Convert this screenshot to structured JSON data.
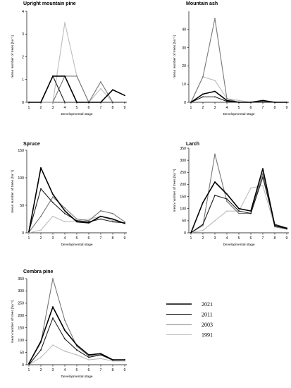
{
  "chart_data": [
    {
      "type": "line",
      "title": "Upright mountain pine",
      "xlabel": "Developmental stage",
      "ylabel": "mean number of trees [ha⁻¹]",
      "x": [
        1,
        2,
        3,
        4,
        5,
        6,
        7,
        8,
        9
      ],
      "ylim": [
        0,
        4
      ],
      "yticks": [
        0,
        1,
        2,
        3,
        4
      ],
      "series": [
        {
          "name": "2021",
          "values": [
            0,
            0,
            1.15,
            1.15,
            0,
            0,
            0,
            0.55,
            0.3
          ]
        },
        {
          "name": "2011",
          "values": [
            0,
            0,
            1.15,
            0,
            0,
            0,
            0,
            0,
            0
          ]
        },
        {
          "name": "2003",
          "values": [
            0,
            0,
            0,
            1.15,
            1.15,
            0,
            0.9,
            0,
            0
          ]
        },
        {
          "name": "1991",
          "values": [
            0,
            0,
            0,
            3.5,
            1.15,
            0,
            0.6,
            0,
            0
          ]
        }
      ]
    },
    {
      "type": "line",
      "title": "Mountain ash",
      "xlabel": "Developmental stage",
      "ylabel": "mean number of trees [ha⁻¹]",
      "x": [
        1,
        2,
        3,
        4,
        5,
        6,
        7,
        8,
        9
      ],
      "ylim": [
        0,
        50
      ],
      "yticks": [
        0,
        10,
        20,
        30,
        40
      ],
      "series": [
        {
          "name": "2021",
          "values": [
            0,
            4.5,
            6,
            1,
            0,
            0,
            1,
            0,
            0
          ]
        },
        {
          "name": "2011",
          "values": [
            0,
            3,
            3,
            0.5,
            0,
            0,
            0,
            0,
            0
          ]
        },
        {
          "name": "2003",
          "values": [
            0,
            14,
            46,
            2,
            0,
            0,
            0.5,
            0,
            0
          ]
        },
        {
          "name": "1991",
          "values": [
            0,
            14,
            12,
            2,
            1,
            0,
            0,
            0,
            0
          ]
        }
      ]
    },
    {
      "type": "line",
      "title": "Spruce",
      "xlabel": "Developmental stage",
      "ylabel": "mean number of trees [ha⁻¹]",
      "x": [
        1,
        2,
        3,
        4,
        5,
        6,
        7,
        8,
        9
      ],
      "ylim": [
        0,
        150
      ],
      "yticks": [
        0,
        50,
        100,
        150
      ],
      "series": [
        {
          "name": "2021",
          "values": [
            2,
            118,
            70,
            40,
            20,
            18,
            30,
            25,
            17
          ]
        },
        {
          "name": "2011",
          "values": [
            2,
            80,
            55,
            35,
            22,
            20,
            25,
            20,
            18
          ]
        },
        {
          "name": "2003",
          "values": [
            1,
            30,
            65,
            45,
            25,
            22,
            40,
            35,
            20
          ]
        },
        {
          "name": "1991",
          "values": [
            0,
            5,
            30,
            20,
            22,
            25,
            30,
            22,
            18
          ]
        }
      ]
    },
    {
      "type": "line",
      "title": "Larch",
      "xlabel": "Developmental stage",
      "ylabel": "mean number of trees [ha⁻¹]",
      "x": [
        1,
        2,
        3,
        4,
        5,
        6,
        7,
        8,
        9
      ],
      "ylim": [
        0,
        350
      ],
      "yticks": [
        0,
        50,
        100,
        150,
        200,
        250,
        300,
        350
      ],
      "series": [
        {
          "name": "2021",
          "values": [
            0,
            125,
            210,
            160,
            100,
            90,
            265,
            30,
            18
          ]
        },
        {
          "name": "2011",
          "values": [
            0,
            35,
            155,
            140,
            90,
            80,
            230,
            35,
            20
          ]
        },
        {
          "name": "2003",
          "values": [
            0,
            30,
            325,
            130,
            80,
            80,
            245,
            25,
            15
          ]
        },
        {
          "name": "1991",
          "values": [
            0,
            10,
            50,
            90,
            90,
            185,
            195,
            25,
            15
          ]
        }
      ]
    },
    {
      "type": "line",
      "title": "Cembra pine",
      "xlabel": "Developmental stage",
      "ylabel": "mean number of trees [ha⁻¹]",
      "x": [
        1,
        2,
        3,
        4,
        5,
        6,
        7,
        8,
        9
      ],
      "ylim": [
        0,
        350
      ],
      "yticks": [
        0,
        50,
        100,
        150,
        200,
        250,
        300,
        350
      ],
      "series": [
        {
          "name": "2021",
          "values": [
            5,
            95,
            235,
            140,
            80,
            40,
            45,
            20,
            20
          ]
        },
        {
          "name": "2011",
          "values": [
            0,
            60,
            190,
            105,
            60,
            30,
            40,
            20,
            20
          ]
        },
        {
          "name": "2003",
          "values": [
            5,
            90,
            350,
            180,
            75,
            35,
            40,
            18,
            20
          ]
        },
        {
          "name": "1991",
          "values": [
            0,
            30,
            80,
            55,
            40,
            20,
            25,
            15,
            15
          ]
        }
      ]
    }
  ],
  "legend": {
    "entries": [
      {
        "name": "2021",
        "color": "#000000",
        "width": 1.6
      },
      {
        "name": "2011",
        "color": "#1e1e1e",
        "width": 1.1
      },
      {
        "name": "2003",
        "color": "#777777",
        "width": 1.1
      },
      {
        "name": "1991",
        "color": "#bdbdbd",
        "width": 1.1
      }
    ]
  }
}
